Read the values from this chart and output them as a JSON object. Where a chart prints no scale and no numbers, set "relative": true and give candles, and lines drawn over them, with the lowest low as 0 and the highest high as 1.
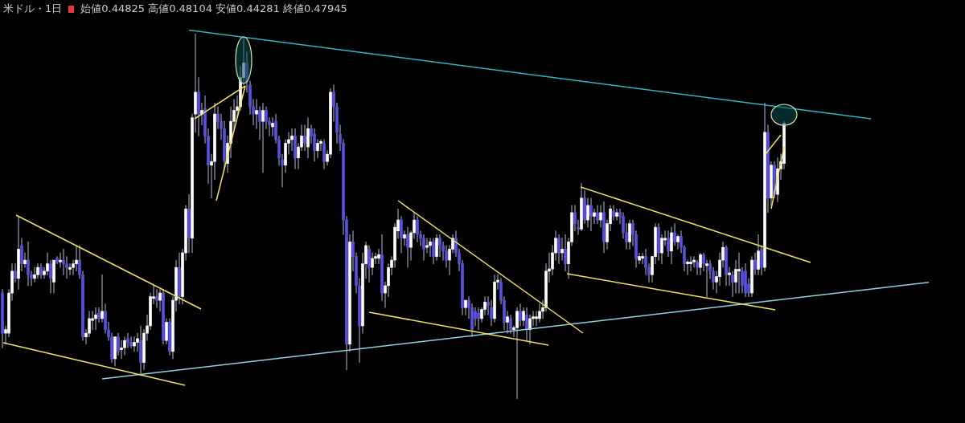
{
  "chart_data": {
    "type": "candlestick",
    "title": "米ドル・1日",
    "subtitle": "始値0.44825 高値0.48104 安値0.44281 終値0.47945",
    "relative": true,
    "series": [
      {
        "type": "line",
        "color": "#2bb5c8",
        "values": [
          null,
          null,
          null,
          null,
          null,
          null,
          null,
          null,
          null,
          null,
          null,
          null,
          null,
          null,
          null,
          null,
          null,
          null,
          null,
          null,
          null,
          null,
          null,
          null,
          null,
          null,
          null,
          null,
          null,
          null,
          null,
          null,
          null,
          null,
          null,
          null,
          null,
          null,
          null,
          null,
          null,
          null,
          null,
          null,
          null,
          null,
          null,
          null,
          null,
          null,
          null,
          null,
          null,
          null,
          null,
          null,
          null,
          null,
          1.01,
          null,
          null,
          null,
          null,
          null,
          null,
          null,
          null,
          null,
          null,
          null,
          null,
          null,
          null,
          null,
          null,
          null,
          null,
          null,
          null,
          null,
          null,
          null,
          null,
          null,
          null,
          null,
          null,
          null,
          null,
          null,
          null,
          null,
          null,
          null,
          null,
          null,
          null,
          null,
          null,
          null,
          null,
          null,
          null,
          null,
          null,
          null,
          null,
          null,
          null,
          null,
          null,
          null,
          null,
          null,
          null,
          null,
          null,
          null,
          null,
          null,
          null,
          null,
          null,
          null,
          null,
          null,
          null,
          null,
          null,
          null,
          null,
          null,
          null,
          null,
          null,
          null,
          null,
          null,
          null,
          null,
          null,
          null,
          null,
          null,
          null,
          null,
          null,
          null,
          null,
          null,
          null,
          null,
          null,
          null,
          null,
          null,
          null,
          null,
          null,
          null,
          null,
          null,
          null,
          null,
          null,
          null,
          null,
          null,
          null,
          null,
          null,
          null,
          null,
          null,
          null,
          null,
          null,
          null,
          null,
          null,
          null,
          null,
          null,
          null,
          null,
          null,
          null,
          null,
          null,
          null,
          null,
          null,
          null,
          null,
          null,
          null,
          null,
          null,
          null,
          null,
          null,
          null,
          null,
          null,
          null,
          null,
          null,
          null,
          null,
          null,
          null,
          null,
          null,
          null,
          null,
          null,
          null,
          null,
          null,
          null,
          null,
          null,
          null,
          null,
          null,
          null,
          null,
          null,
          null,
          null,
          null,
          null,
          null,
          null,
          null,
          null,
          null,
          null,
          null,
          null,
          null,
          null,
          null,
          null,
          null,
          null,
          null,
          null,
          null,
          null,
          null,
          null,
          null,
          null,
          null,
          null,
          null,
          null,
          null,
          null,
          null,
          null,
          null,
          null,
          null,
          null,
          null,
          null,
          null,
          null,
          0.767,
          null,
          null,
          null,
          null,
          null,
          null,
          null,
          null,
          null,
          null,
          null,
          null,
          null,
          null,
          null,
          null,
          null,
          null
        ]
      },
      {
        "type": "line",
        "color": "#8fd3e0",
        "values": [
          null,
          null,
          null,
          null,
          null,
          null,
          null,
          null,
          null,
          null,
          null,
          null,
          null,
          null,
          null,
          null,
          null,
          null,
          null,
          null,
          null,
          null,
          null,
          null,
          null,
          null,
          null,
          null,
          null,
          null,
          null,
          0.055,
          null,
          null,
          null,
          null,
          null,
          null,
          null,
          null,
          null,
          null,
          null,
          null,
          null,
          null,
          null,
          null,
          null,
          null,
          null,
          null,
          null,
          null,
          null,
          null,
          null,
          null,
          null,
          null,
          null,
          null,
          null,
          null,
          null,
          null,
          null,
          null,
          null,
          null,
          null,
          null,
          null,
          null,
          null,
          null,
          null,
          null,
          null,
          null,
          null,
          null,
          null,
          null,
          null,
          null,
          null,
          null,
          null,
          null,
          null,
          null,
          null,
          null,
          null,
          null,
          null,
          null,
          null,
          null,
          null,
          null,
          null,
          null,
          null,
          null,
          null,
          null,
          null,
          null,
          null,
          null,
          null,
          null,
          null,
          null,
          null,
          null,
          null,
          null,
          null,
          null,
          null,
          null,
          null,
          null,
          null,
          null,
          null,
          null,
          null,
          null,
          null,
          null,
          null,
          null,
          null,
          null,
          null,
          null,
          null,
          null,
          null,
          null,
          null,
          null,
          null,
          null,
          null,
          null,
          null,
          null,
          null,
          null,
          null,
          null,
          null,
          null,
          null,
          null,
          null,
          null,
          null,
          null,
          null,
          null,
          null,
          null,
          null,
          null,
          null,
          null,
          null,
          null,
          null,
          null,
          null,
          null,
          null,
          null,
          null,
          null,
          null,
          null,
          null,
          null,
          null,
          null,
          null,
          null,
          null,
          null,
          null,
          null,
          null,
          null,
          null,
          null,
          null,
          null,
          null,
          null,
          null,
          null,
          null,
          null,
          null,
          null,
          null,
          null,
          null,
          null,
          null,
          null,
          null,
          null,
          null,
          null,
          null,
          null,
          null,
          null,
          null,
          null,
          null,
          null,
          null,
          null,
          null,
          null,
          null,
          null,
          null,
          null,
          null,
          null,
          null,
          null,
          null,
          null,
          null,
          null,
          null,
          null,
          null,
          null,
          null,
          null,
          null,
          null,
          null,
          null,
          null,
          null,
          null,
          null,
          null,
          null,
          null,
          null,
          null,
          null,
          null,
          null,
          null,
          null,
          null,
          null,
          null,
          null,
          null,
          null,
          null,
          null,
          null,
          null,
          null,
          null,
          null,
          null,
          null,
          null,
          null,
          null,
          null,
          null,
          null,
          null,
          0.319
        ]
      }
    ],
    "categories": [
      null,
      null,
      null,
      null,
      null,
      null,
      null,
      null,
      null,
      null,
      null,
      null,
      null,
      null,
      null,
      null,
      null,
      null,
      null,
      null,
      null,
      null,
      null,
      null,
      null,
      null,
      null,
      null,
      null,
      null,
      null,
      null,
      null,
      null,
      null,
      null,
      null,
      null,
      null,
      null,
      null,
      null,
      null,
      null,
      null,
      null,
      null,
      null,
      null,
      null,
      null,
      null,
      null,
      null,
      null,
      null,
      null,
      null,
      null,
      null,
      null,
      null,
      null,
      null,
      null,
      null,
      null,
      null,
      null,
      null,
      null,
      null,
      null,
      null,
      null,
      null,
      null,
      null,
      null,
      null,
      null,
      null,
      null,
      null,
      null,
      null,
      null,
      null,
      null,
      null,
      null,
      null,
      null,
      null,
      null,
      null,
      null,
      null,
      null,
      null,
      null,
      null,
      null,
      null,
      null,
      null,
      null,
      null,
      null,
      null,
      null,
      null,
      null,
      null,
      null,
      null,
      null,
      null,
      null,
      null,
      null,
      null,
      null,
      null,
      null,
      null,
      null,
      null,
      null,
      null,
      null,
      null,
      null,
      null,
      null,
      null,
      null,
      null,
      null,
      null,
      null,
      null,
      null,
      null,
      null,
      null,
      null,
      null,
      null,
      null,
      null,
      null,
      null,
      null,
      null,
      null,
      null,
      null,
      null,
      null,
      null,
      null,
      null,
      null,
      null,
      null,
      null,
      null,
      null,
      null,
      null,
      null,
      null,
      null,
      null,
      null,
      null,
      null,
      null,
      null,
      null,
      null,
      null,
      null,
      null,
      null,
      null,
      null,
      null,
      null,
      null,
      null,
      null,
      null,
      null,
      null,
      null,
      null,
      null,
      null,
      null,
      null,
      null,
      null,
      null,
      null,
      null,
      null,
      null,
      null,
      null,
      null,
      null,
      null,
      null,
      null,
      null,
      null,
      null,
      null,
      null,
      null,
      null,
      null,
      null,
      null,
      null,
      null,
      null,
      null,
      null,
      null,
      null,
      null,
      null,
      null,
      null,
      null,
      null,
      null,
      null,
      null,
      null,
      null,
      null,
      null,
      null,
      null,
      null,
      null,
      null,
      null,
      null,
      null,
      null,
      null,
      null,
      null,
      null,
      null,
      null,
      null,
      null,
      null,
      null,
      null,
      null,
      null,
      null,
      null,
      null,
      null,
      null,
      null,
      null,
      null,
      null,
      null,
      null,
      null,
      null,
      null,
      null,
      null,
      null,
      null,
      null,
      null,
      null
    ],
    "ohlc": [
      [
        0.29,
        0.3,
        0.14,
        0.18
      ],
      [
        0.18,
        0.2,
        0.15,
        0.19
      ],
      [
        0.18,
        0.3,
        0.17,
        0.29
      ],
      [
        0.29,
        0.37,
        0.27,
        0.35
      ],
      [
        0.35,
        0.37,
        0.32,
        0.33
      ],
      [
        0.33,
        0.5,
        0.3,
        0.41
      ],
      [
        0.42,
        0.44,
        0.35,
        0.37
      ],
      [
        0.37,
        0.4,
        0.36,
        0.38
      ],
      [
        0.38,
        0.43,
        0.31,
        0.34
      ],
      [
        0.34,
        0.35,
        0.31,
        0.33
      ],
      [
        0.33,
        0.36,
        0.32,
        0.34
      ],
      [
        0.34,
        0.37,
        0.33,
        0.36
      ],
      [
        0.36,
        0.37,
        0.33,
        0.34
      ],
      [
        0.34,
        0.36,
        0.33,
        0.35
      ],
      [
        0.35,
        0.4,
        0.34,
        0.37
      ],
      [
        0.37,
        0.38,
        0.29,
        0.33
      ],
      [
        0.32,
        0.38,
        0.29,
        0.38
      ],
      [
        0.385,
        0.39,
        0.37,
        0.375
      ],
      [
        0.375,
        0.4,
        0.36,
        0.38
      ],
      [
        0.38,
        0.41,
        0.34,
        0.37
      ],
      [
        0.37,
        0.39,
        0.33,
        0.36
      ],
      [
        0.355,
        0.37,
        0.34,
        0.36
      ],
      [
        0.36,
        0.38,
        0.34,
        0.37
      ],
      [
        0.37,
        0.42,
        0.35,
        0.38
      ],
      [
        0.38,
        0.42,
        0.33,
        0.34
      ],
      [
        0.34,
        0.35,
        0.16,
        0.17
      ],
      [
        0.17,
        0.19,
        0.15,
        0.18
      ],
      [
        0.18,
        0.24,
        0.17,
        0.22
      ],
      [
        0.215,
        0.24,
        0.19,
        0.22
      ],
      [
        0.22,
        0.25,
        0.19,
        0.23
      ],
      [
        0.235,
        0.25,
        0.21,
        0.22
      ],
      [
        0.22,
        0.34,
        0.21,
        0.24
      ],
      [
        0.24,
        0.26,
        0.18,
        0.19
      ],
      [
        0.19,
        0.21,
        0.16,
        0.17
      ],
      [
        0.17,
        0.18,
        0.1,
        0.11
      ],
      [
        0.11,
        0.17,
        0.09,
        0.17
      ],
      [
        0.17,
        0.18,
        0.12,
        0.13
      ],
      [
        0.135,
        0.16,
        0.11,
        0.14
      ],
      [
        0.14,
        0.17,
        0.12,
        0.16
      ],
      [
        0.165,
        0.18,
        0.14,
        0.155
      ],
      [
        0.155,
        0.17,
        0.14,
        0.145
      ],
      [
        0.145,
        0.17,
        0.13,
        0.155
      ],
      [
        0.155,
        0.18,
        0.13,
        0.165
      ],
      [
        0.16,
        0.2,
        0.07,
        0.1
      ],
      [
        0.1,
        0.19,
        0.08,
        0.18
      ],
      [
        0.18,
        0.23,
        0.16,
        0.2
      ],
      [
        0.2,
        0.29,
        0.19,
        0.28
      ],
      [
        0.275,
        0.31,
        0.26,
        0.28
      ],
      [
        0.28,
        0.3,
        0.25,
        0.27
      ],
      [
        0.27,
        0.3,
        0.24,
        0.29
      ],
      [
        0.29,
        0.3,
        0.15,
        0.16
      ],
      [
        0.16,
        0.22,
        0.15,
        0.21
      ],
      [
        0.21,
        0.22,
        0.12,
        0.13
      ],
      [
        0.13,
        0.28,
        0.11,
        0.27
      ],
      [
        0.27,
        0.38,
        0.24,
        0.36
      ],
      [
        0.36,
        0.4,
        0.26,
        0.28
      ],
      [
        0.28,
        0.41,
        0.26,
        0.4
      ],
      [
        0.4,
        0.53,
        0.38,
        0.52
      ],
      [
        0.52,
        0.56,
        0.4,
        0.44
      ],
      [
        0.44,
        0.78,
        0.4,
        0.77
      ],
      [
        0.78,
        1.0,
        0.73,
        0.84
      ],
      [
        0.84,
        0.88,
        0.72,
        0.78
      ],
      [
        0.78,
        0.81,
        0.75,
        0.79
      ],
      [
        0.795,
        0.83,
        0.7,
        0.72
      ],
      [
        0.72,
        0.74,
        0.59,
        0.64
      ],
      [
        0.64,
        0.67,
        0.55,
        0.65
      ],
      [
        0.65,
        0.81,
        0.6,
        0.78
      ],
      [
        0.78,
        0.8,
        0.74,
        0.76
      ],
      [
        0.76,
        0.78,
        0.71,
        0.74
      ],
      [
        0.74,
        0.76,
        0.63,
        0.65
      ],
      [
        0.645,
        0.72,
        0.62,
        0.7
      ],
      [
        0.7,
        0.8,
        0.66,
        0.76
      ],
      [
        0.76,
        0.82,
        0.74,
        0.79
      ],
      [
        0.79,
        0.83,
        0.77,
        0.8
      ],
      [
        0.8,
        0.91,
        0.79,
        0.88
      ],
      [
        0.88,
        0.99,
        0.86,
        0.92
      ],
      [
        0.92,
        0.95,
        0.84,
        0.87
      ],
      [
        0.86,
        0.87,
        0.78,
        0.8
      ],
      [
        0.8,
        0.82,
        0.75,
        0.78
      ],
      [
        0.78,
        0.82,
        0.74,
        0.79
      ],
      [
        0.79,
        0.8,
        0.71,
        0.76
      ],
      [
        0.76,
        0.81,
        0.62,
        0.79
      ],
      [
        0.79,
        0.8,
        0.74,
        0.76
      ],
      [
        0.76,
        0.77,
        0.72,
        0.75
      ],
      [
        0.745,
        0.77,
        0.72,
        0.755
      ],
      [
        0.76,
        0.78,
        0.7,
        0.71
      ],
      [
        0.71,
        0.72,
        0.64,
        0.66
      ],
      [
        0.655,
        0.67,
        0.58,
        0.64
      ],
      [
        0.64,
        0.71,
        0.62,
        0.7
      ],
      [
        0.7,
        0.73,
        0.67,
        0.71
      ],
      [
        0.71,
        0.74,
        0.68,
        0.72
      ],
      [
        0.72,
        0.74,
        0.63,
        0.66
      ],
      [
        0.66,
        0.7,
        0.63,
        0.69
      ],
      [
        0.69,
        0.75,
        0.68,
        0.72
      ],
      [
        0.72,
        0.75,
        0.68,
        0.7
      ],
      [
        0.69,
        0.77,
        0.66,
        0.74
      ],
      [
        0.74,
        0.75,
        0.7,
        0.72
      ],
      [
        0.725,
        0.74,
        0.65,
        0.68
      ],
      [
        0.68,
        0.71,
        0.66,
        0.7
      ],
      [
        0.7,
        0.71,
        0.68,
        0.705
      ],
      [
        0.7,
        0.71,
        0.63,
        0.65
      ],
      [
        0.65,
        0.68,
        0.64,
        0.67
      ],
      [
        0.67,
        0.85,
        0.66,
        0.84
      ],
      [
        0.84,
        0.86,
        0.76,
        0.8
      ],
      [
        0.8,
        0.81,
        0.7,
        0.73
      ],
      [
        0.725,
        0.75,
        0.68,
        0.7
      ],
      [
        0.7,
        0.71,
        0.45,
        0.49
      ],
      [
        0.49,
        0.5,
        0.08,
        0.15
      ],
      [
        0.15,
        0.45,
        0.13,
        0.43
      ],
      [
        0.43,
        0.46,
        0.35,
        0.39
      ],
      [
        0.39,
        0.4,
        0.29,
        0.31
      ],
      [
        0.31,
        0.33,
        0.1,
        0.2
      ],
      [
        0.2,
        0.4,
        0.18,
        0.37
      ],
      [
        0.37,
        0.43,
        0.33,
        0.42
      ],
      [
        0.41,
        0.42,
        0.32,
        0.36
      ],
      [
        0.36,
        0.4,
        0.34,
        0.385
      ],
      [
        0.385,
        0.4,
        0.37,
        0.39
      ],
      [
        0.385,
        0.41,
        0.37,
        0.395
      ],
      [
        0.395,
        0.45,
        0.27,
        0.29
      ],
      [
        0.29,
        0.32,
        0.25,
        0.31
      ],
      [
        0.31,
        0.37,
        0.28,
        0.36
      ],
      [
        0.36,
        0.39,
        0.34,
        0.38
      ],
      [
        0.38,
        0.48,
        0.36,
        0.47
      ],
      [
        0.46,
        0.52,
        0.44,
        0.49
      ],
      [
        0.49,
        0.5,
        0.4,
        0.44
      ],
      [
        0.44,
        0.46,
        0.42,
        0.45
      ],
      [
        0.45,
        0.47,
        0.36,
        0.415
      ],
      [
        0.415,
        0.46,
        0.38,
        0.455
      ],
      [
        0.455,
        0.51,
        0.44,
        0.49
      ],
      [
        0.49,
        0.5,
        0.43,
        0.45
      ],
      [
        0.45,
        0.46,
        0.42,
        0.44
      ],
      [
        0.44,
        0.45,
        0.38,
        0.41
      ],
      [
        0.415,
        0.44,
        0.4,
        0.42
      ],
      [
        0.42,
        0.44,
        0.39,
        0.43
      ],
      [
        0.43,
        0.44,
        0.37,
        0.39
      ],
      [
        0.39,
        0.45,
        0.38,
        0.44
      ],
      [
        0.44,
        0.45,
        0.39,
        0.42
      ],
      [
        0.42,
        0.43,
        0.38,
        0.405
      ],
      [
        0.405,
        0.42,
        0.36,
        0.38
      ],
      [
        0.38,
        0.42,
        0.34,
        0.41
      ],
      [
        0.41,
        0.45,
        0.4,
        0.44
      ],
      [
        0.44,
        0.46,
        0.39,
        0.4
      ],
      [
        0.4,
        0.41,
        0.35,
        0.37
      ],
      [
        0.37,
        0.38,
        0.23,
        0.25
      ],
      [
        0.25,
        0.27,
        0.23,
        0.27
      ],
      [
        0.27,
        0.28,
        0.22,
        0.25
      ],
      [
        0.25,
        0.26,
        0.17,
        0.19
      ],
      [
        0.24,
        0.25,
        0.2,
        0.22
      ],
      [
        0.235,
        0.25,
        0.19,
        0.22
      ],
      [
        0.22,
        0.25,
        0.21,
        0.245
      ],
      [
        0.245,
        0.28,
        0.23,
        0.265
      ],
      [
        0.265,
        0.28,
        0.23,
        0.255
      ],
      [
        0.25,
        0.27,
        0.2,
        0.22
      ],
      [
        0.22,
        0.34,
        0.21,
        0.32
      ],
      [
        0.32,
        0.34,
        0.3,
        0.325
      ],
      [
        0.32,
        0.33,
        0.26,
        0.27
      ],
      [
        0.27,
        0.28,
        0.19,
        0.21
      ],
      [
        0.21,
        0.24,
        0.18,
        0.225
      ],
      [
        0.22,
        0.23,
        0.18,
        0.19
      ],
      [
        0.19,
        0.2,
        0.17,
        0.195
      ],
      [
        0.195,
        0.25,
        0.0,
        0.24
      ],
      [
        0.24,
        0.26,
        0.2,
        0.215
      ],
      [
        0.215,
        0.25,
        0.2,
        0.24
      ],
      [
        0.23,
        0.25,
        0.16,
        0.19
      ],
      [
        0.19,
        0.23,
        0.15,
        0.22
      ],
      [
        0.22,
        0.24,
        0.2,
        0.225
      ],
      [
        0.22,
        0.24,
        0.2,
        0.225
      ],
      [
        0.22,
        0.26,
        0.21,
        0.24
      ],
      [
        0.24,
        0.27,
        0.22,
        0.25
      ],
      [
        0.25,
        0.37,
        0.24,
        0.35
      ],
      [
        0.35,
        0.4,
        0.32,
        0.356
      ],
      [
        0.356,
        0.42,
        0.34,
        0.4
      ],
      [
        0.4,
        0.46,
        0.38,
        0.44
      ],
      [
        0.44,
        0.45,
        0.37,
        0.4
      ],
      [
        0.4,
        0.44,
        0.38,
        0.41
      ],
      [
        0.41,
        0.45,
        0.35,
        0.37
      ],
      [
        0.37,
        0.44,
        0.33,
        0.43
      ],
      [
        0.43,
        0.53,
        0.42,
        0.51
      ],
      [
        0.51,
        0.53,
        0.46,
        0.48
      ],
      [
        0.47,
        0.49,
        0.45,
        0.465
      ],
      [
        0.465,
        0.59,
        0.46,
        0.55
      ],
      [
        0.55,
        0.57,
        0.48,
        0.49
      ],
      [
        0.49,
        0.55,
        0.47,
        0.53
      ],
      [
        0.53,
        0.55,
        0.46,
        0.5
      ],
      [
        0.5,
        0.52,
        0.48,
        0.51
      ],
      [
        0.51,
        0.53,
        0.48,
        0.49
      ],
      [
        0.49,
        0.53,
        0.47,
        0.51
      ],
      [
        0.51,
        0.54,
        0.4,
        0.43
      ],
      [
        0.43,
        0.49,
        0.41,
        0.48
      ],
      [
        0.48,
        0.53,
        0.46,
        0.52
      ],
      [
        0.515,
        0.53,
        0.49,
        0.5
      ],
      [
        0.5,
        0.52,
        0.49,
        0.51
      ],
      [
        0.51,
        0.52,
        0.48,
        0.5
      ],
      [
        0.5,
        0.51,
        0.44,
        0.455
      ],
      [
        0.455,
        0.48,
        0.41,
        0.43
      ],
      [
        0.43,
        0.49,
        0.41,
        0.48
      ],
      [
        0.48,
        0.49,
        0.42,
        0.45
      ],
      [
        0.45,
        0.46,
        0.36,
        0.385
      ],
      [
        0.38,
        0.4,
        0.37,
        0.39
      ],
      [
        0.385,
        0.4,
        0.37,
        0.39
      ],
      [
        0.39,
        0.41,
        0.34,
        0.36
      ],
      [
        0.36,
        0.37,
        0.32,
        0.34
      ],
      [
        0.34,
        0.39,
        0.32,
        0.39
      ],
      [
        0.39,
        0.48,
        0.37,
        0.47
      ],
      [
        0.47,
        0.48,
        0.38,
        0.4
      ],
      [
        0.4,
        0.45,
        0.37,
        0.44
      ],
      [
        0.435,
        0.46,
        0.42,
        0.44
      ],
      [
        0.44,
        0.46,
        0.39,
        0.405
      ],
      [
        0.405,
        0.47,
        0.37,
        0.455
      ],
      [
        0.455,
        0.48,
        0.42,
        0.43
      ],
      [
        0.43,
        0.45,
        0.41,
        0.445
      ],
      [
        0.445,
        0.46,
        0.4,
        0.415
      ],
      [
        0.415,
        0.42,
        0.35,
        0.37
      ],
      [
        0.37,
        0.38,
        0.34,
        0.375
      ],
      [
        0.37,
        0.39,
        0.35,
        0.375
      ],
      [
        0.375,
        0.39,
        0.36,
        0.38
      ],
      [
        0.375,
        0.38,
        0.34,
        0.36
      ],
      [
        0.36,
        0.4,
        0.34,
        0.395
      ],
      [
        0.395,
        0.4,
        0.35,
        0.37
      ],
      [
        0.365,
        0.38,
        0.28,
        0.37
      ],
      [
        0.37,
        0.38,
        0.33,
        0.35
      ],
      [
        0.35,
        0.36,
        0.3,
        0.32
      ],
      [
        0.32,
        0.35,
        0.29,
        0.335
      ],
      [
        0.335,
        0.4,
        0.31,
        0.38
      ],
      [
        0.38,
        0.43,
        0.36,
        0.415
      ],
      [
        0.415,
        0.42,
        0.31,
        0.34
      ],
      [
        0.34,
        0.36,
        0.31,
        0.345
      ],
      [
        0.34,
        0.35,
        0.28,
        0.32
      ],
      [
        0.32,
        0.38,
        0.29,
        0.355
      ],
      [
        0.35,
        0.4,
        0.29,
        0.355
      ],
      [
        0.35,
        0.36,
        0.29,
        0.31
      ],
      [
        0.35,
        0.37,
        0.28,
        0.29
      ],
      [
        0.315,
        0.33,
        0.28,
        0.29
      ],
      [
        0.29,
        0.39,
        0.28,
        0.38
      ],
      [
        0.38,
        0.4,
        0.34,
        0.355
      ],
      [
        0.355,
        0.45,
        0.34,
        0.405
      ],
      [
        0.41,
        0.42,
        0.34,
        0.36
      ],
      [
        0.36,
        0.81,
        0.35,
        0.73
      ],
      [
        0.73,
        0.75,
        0.51,
        0.55
      ],
      [
        0.55,
        0.65,
        0.53,
        0.64
      ],
      [
        0.64,
        0.65,
        0.55,
        0.56
      ],
      [
        0.56,
        0.66,
        0.54,
        0.63
      ],
      [
        0.63,
        0.67,
        0.6,
        0.65
      ],
      [
        0.645,
        0.76,
        0.63,
        0.755
      ],
      null,
      null,
      null,
      null,
      null,
      null,
      null,
      null,
      null,
      null,
      null,
      null,
      null,
      null,
      null,
      null,
      null,
      null,
      null,
      null,
      null,
      null,
      null,
      null,
      null,
      null,
      null,
      null,
      null,
      null,
      null,
      null,
      null,
      null,
      null,
      null,
      null,
      null,
      null,
      null,
      null,
      null,
      null,
      null,
      null
    ]
  }
}
